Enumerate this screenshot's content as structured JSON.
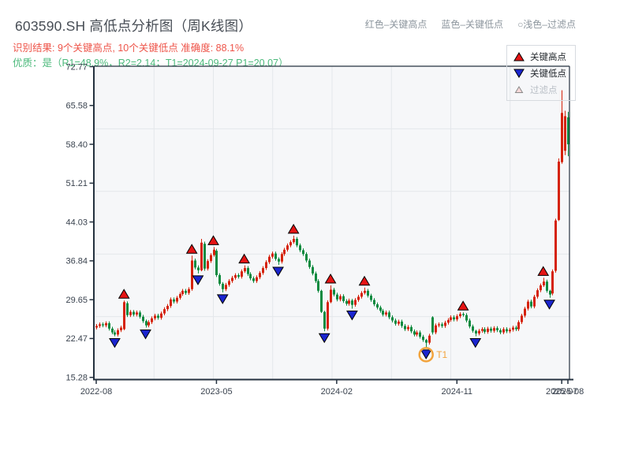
{
  "header": {
    "title": "603590.SH 高低点分析图（周K线图）",
    "legend_hint": [
      {
        "label": "红色–关键高点"
      },
      {
        "label": "蓝色–关键低点"
      },
      {
        "label": "○浅色–过滤点"
      }
    ],
    "result_line": "识别结果: 9个关键高点, 10个关键低点  准确度: 88.1%",
    "quality_line": "优质：是（R1=48.9%，R2=2.14；T1=2024-09-27 P1=20.07）"
  },
  "colors": {
    "title": "#474d55",
    "result_text": "#ee5449",
    "quality_text": "#4bb97b",
    "hint_text": "#8d969e",
    "axis_label": "#39424e",
    "spine": "#24313f",
    "grid": "#e4e7eb",
    "plot_bg": "#f6f7f9",
    "up": "#d5220a",
    "down": "#0d8a3f",
    "key_high_marker": "#e51414",
    "key_low_marker": "#1a25cf",
    "filtered_marker": "#f7d9d9",
    "t1_orange": "#f2a33c"
  },
  "chart_data": {
    "type": "candlestick",
    "period": "weekly",
    "title": "603590.SH 高低点分析图（周K线图）",
    "ylim": [
      15.28,
      72.77
    ],
    "y_ticks": [
      72.77,
      65.58,
      58.4,
      51.21,
      44.03,
      36.84,
      29.65,
      22.47,
      15.28
    ],
    "x_ticks": [
      {
        "week": 0,
        "label": "2022-08"
      },
      {
        "week": 39,
        "label": "2023-05"
      },
      {
        "week": 78,
        "label": "2024-02"
      },
      {
        "week": 117,
        "label": "2024-11"
      },
      {
        "week": 151,
        "label": "2025-07"
      },
      {
        "week": 153,
        "label": "2025-08"
      }
    ],
    "legend": [
      {
        "label": "关键高点",
        "marker": "up-triangle-red"
      },
      {
        "label": "关键低点",
        "marker": "down-triangle-blue"
      },
      {
        "label": "过滤点",
        "marker": "hollow-triangle-light"
      }
    ],
    "up_color": "#d5220a",
    "down_color": "#0d8a3f",
    "default_wick": 0.35,
    "candles": [
      [
        24.5,
        24.8
      ],
      [
        24.8,
        25.1
      ],
      [
        25.1,
        24.9
      ],
      [
        24.9,
        25.3
      ],
      [
        25.3,
        24.3
      ],
      [
        24.3,
        23.6
      ],
      [
        23.6,
        23.2
      ],
      [
        23.2,
        24.0
      ],
      [
        24.0,
        24.5
      ],
      [
        24.2,
        29.2
      ],
      [
        29.0,
        26.8
      ],
      [
        26.8,
        27.4
      ],
      [
        27.4,
        26.9
      ],
      [
        26.9,
        27.3
      ],
      [
        27.3,
        26.5
      ],
      [
        26.5,
        25.7
      ],
      [
        25.7,
        24.9
      ],
      [
        24.9,
        25.5
      ],
      [
        25.5,
        26.2
      ],
      [
        26.2,
        26.7
      ],
      [
        26.7,
        26.3
      ],
      [
        26.3,
        27.1
      ],
      [
        27.1,
        27.9
      ],
      [
        27.9,
        28.5
      ],
      [
        28.5,
        29.7
      ],
      [
        29.7,
        29.3
      ],
      [
        29.3,
        30.0
      ],
      [
        30.0,
        30.7
      ],
      [
        30.7,
        31.3
      ],
      [
        31.3,
        30.9
      ],
      [
        30.9,
        31.6
      ],
      [
        31.6,
        36.9
      ],
      [
        36.9,
        35.6
      ],
      [
        35.6,
        35.1
      ],
      [
        35.1,
        40.2
      ],
      [
        40.0,
        35.4
      ],
      [
        35.4,
        36.8
      ],
      [
        36.8,
        37.9
      ],
      [
        37.9,
        38.9
      ],
      [
        38.7,
        34.2
      ],
      [
        34.2,
        32.6
      ],
      [
        32.6,
        31.6
      ],
      [
        31.6,
        32.4
      ],
      [
        32.4,
        33.1
      ],
      [
        33.1,
        33.7
      ],
      [
        33.7,
        34.2
      ],
      [
        34.2,
        33.9
      ],
      [
        33.9,
        34.9
      ],
      [
        34.9,
        35.5
      ],
      [
        35.5,
        34.4
      ],
      [
        34.4,
        33.6
      ],
      [
        33.6,
        33.1
      ],
      [
        33.1,
        33.8
      ],
      [
        33.8,
        34.6
      ],
      [
        34.6,
        35.5
      ],
      [
        35.5,
        36.6
      ],
      [
        36.6,
        37.6
      ],
      [
        37.6,
        38.2
      ],
      [
        38.2,
        37.2
      ],
      [
        37.2,
        36.7
      ],
      [
        36.7,
        38.1
      ],
      [
        38.1,
        38.9
      ],
      [
        38.9,
        39.7
      ],
      [
        39.7,
        40.3
      ],
      [
        40.3,
        40.9
      ],
      [
        40.9,
        39.7
      ],
      [
        39.7,
        38.8
      ],
      [
        38.8,
        38.1
      ],
      [
        38.1,
        36.9
      ],
      [
        36.9,
        35.7
      ],
      [
        35.7,
        34.5
      ],
      [
        34.5,
        33.1
      ],
      [
        33.1,
        31.3
      ],
      [
        31.3,
        27.4
      ],
      [
        27.4,
        24.3
      ],
      [
        24.3,
        29.2
      ],
      [
        29.2,
        31.5
      ],
      [
        31.5,
        30.6
      ],
      [
        30.6,
        29.7
      ],
      [
        29.7,
        30.3
      ],
      [
        30.3,
        29.4
      ],
      [
        29.4,
        28.9
      ],
      [
        28.9,
        29.5
      ],
      [
        29.5,
        28.7
      ],
      [
        28.7,
        29.6
      ],
      [
        29.6,
        30.2
      ],
      [
        30.2,
        30.9
      ],
      [
        30.9,
        31.3
      ],
      [
        31.3,
        30.4
      ],
      [
        30.4,
        29.6
      ],
      [
        29.6,
        28.8
      ],
      [
        28.8,
        28.2
      ],
      [
        28.2,
        27.6
      ],
      [
        27.6,
        26.9
      ],
      [
        26.9,
        27.3
      ],
      [
        27.3,
        26.4
      ],
      [
        26.4,
        25.8
      ],
      [
        25.8,
        25.2
      ],
      [
        25.2,
        25.6
      ],
      [
        25.6,
        24.8
      ],
      [
        24.8,
        24.2
      ],
      [
        24.2,
        24.6
      ],
      [
        24.6,
        23.8
      ],
      [
        23.8,
        23.2
      ],
      [
        23.2,
        23.6
      ],
      [
        23.6,
        22.8
      ],
      [
        22.8,
        22.2
      ],
      [
        22.2,
        21.7
      ],
      [
        21.7,
        23.0
      ],
      [
        26.4,
        23.6
      ],
      [
        23.6,
        24.9
      ],
      [
        24.9,
        25.1
      ],
      [
        25.1,
        24.8
      ],
      [
        24.8,
        25.4
      ],
      [
        25.4,
        25.9
      ],
      [
        25.9,
        26.4
      ],
      [
        26.4,
        26.0
      ],
      [
        26.0,
        26.6
      ],
      [
        26.6,
        27.0
      ],
      [
        27.0,
        26.8
      ],
      [
        26.8,
        25.8
      ],
      [
        25.8,
        24.7
      ],
      [
        24.7,
        23.9
      ],
      [
        23.9,
        23.4
      ],
      [
        23.4,
        23.9
      ],
      [
        23.9,
        24.2
      ],
      [
        24.2,
        23.7
      ],
      [
        23.7,
        24.3
      ],
      [
        24.3,
        23.9
      ],
      [
        23.9,
        24.4
      ],
      [
        24.4,
        24.0
      ],
      [
        24.0,
        23.6
      ],
      [
        23.6,
        24.2
      ],
      [
        24.2,
        23.8
      ],
      [
        23.8,
        24.1
      ],
      [
        24.1,
        24.5
      ],
      [
        24.5,
        24.2
      ],
      [
        24.2,
        25.5
      ],
      [
        25.5,
        26.7
      ],
      [
        26.7,
        28.0
      ],
      [
        28.0,
        29.3
      ],
      [
        29.3,
        28.4
      ],
      [
        28.4,
        30.2
      ],
      [
        30.2,
        31.4
      ],
      [
        31.4,
        32.3
      ],
      [
        32.3,
        33.0
      ],
      [
        33.0,
        31.3
      ],
      [
        31.3,
        30.6
      ],
      [
        30.8,
        34.9
      ],
      [
        35.0,
        44.3
      ],
      [
        44.4,
        55.2
      ],
      [
        55.1,
        64.2
      ],
      [
        57.2,
        63.6
      ],
      [
        63.4,
        58.4
      ]
    ],
    "wick_overrides": {
      "6": [
        22.9,
        24.0
      ],
      "9": [
        24.0,
        29.5
      ],
      "16": [
        24.5,
        26.0
      ],
      "31": [
        31.3,
        37.8
      ],
      "33": [
        34.5,
        36.0
      ],
      "34": [
        34.9,
        40.9
      ],
      "35": [
        35.0,
        40.4
      ],
      "38": [
        37.6,
        39.4
      ],
      "41": [
        31.0,
        32.9
      ],
      "48": [
        34.6,
        36.0
      ],
      "59": [
        36.1,
        37.5
      ],
      "64": [
        40.0,
        41.5
      ],
      "73": [
        27.2,
        31.5
      ],
      "74": [
        23.8,
        27.6
      ],
      "76": [
        29.0,
        32.3
      ],
      "83": [
        28.0,
        29.8
      ],
      "87": [
        30.6,
        31.9
      ],
      "107": [
        20.8,
        22.4
      ],
      "109": [
        23.2,
        26.6
      ],
      "119": [
        26.5,
        27.3
      ],
      "123": [
        22.9,
        24.1
      ],
      "145": [
        32.0,
        33.7
      ],
      "147": [
        30.0,
        31.5
      ],
      "150": [
        44.2,
        55.8
      ],
      "151": [
        54.8,
        68.4
      ],
      "152": [
        56.4,
        64.6
      ],
      "153": [
        56.2,
        64.4
      ]
    },
    "key_high_weeks": [
      9,
      31,
      38,
      48,
      64,
      76,
      87,
      119,
      145
    ],
    "key_low_weeks": [
      6,
      16,
      33,
      41,
      59,
      74,
      83,
      107,
      123,
      147
    ],
    "key_high_count": 9,
    "key_low_count": 10,
    "accuracy": "88.1%",
    "t1": {
      "week": 107,
      "price": 20.07,
      "date": "2024-09-27",
      "label": "T1"
    }
  }
}
